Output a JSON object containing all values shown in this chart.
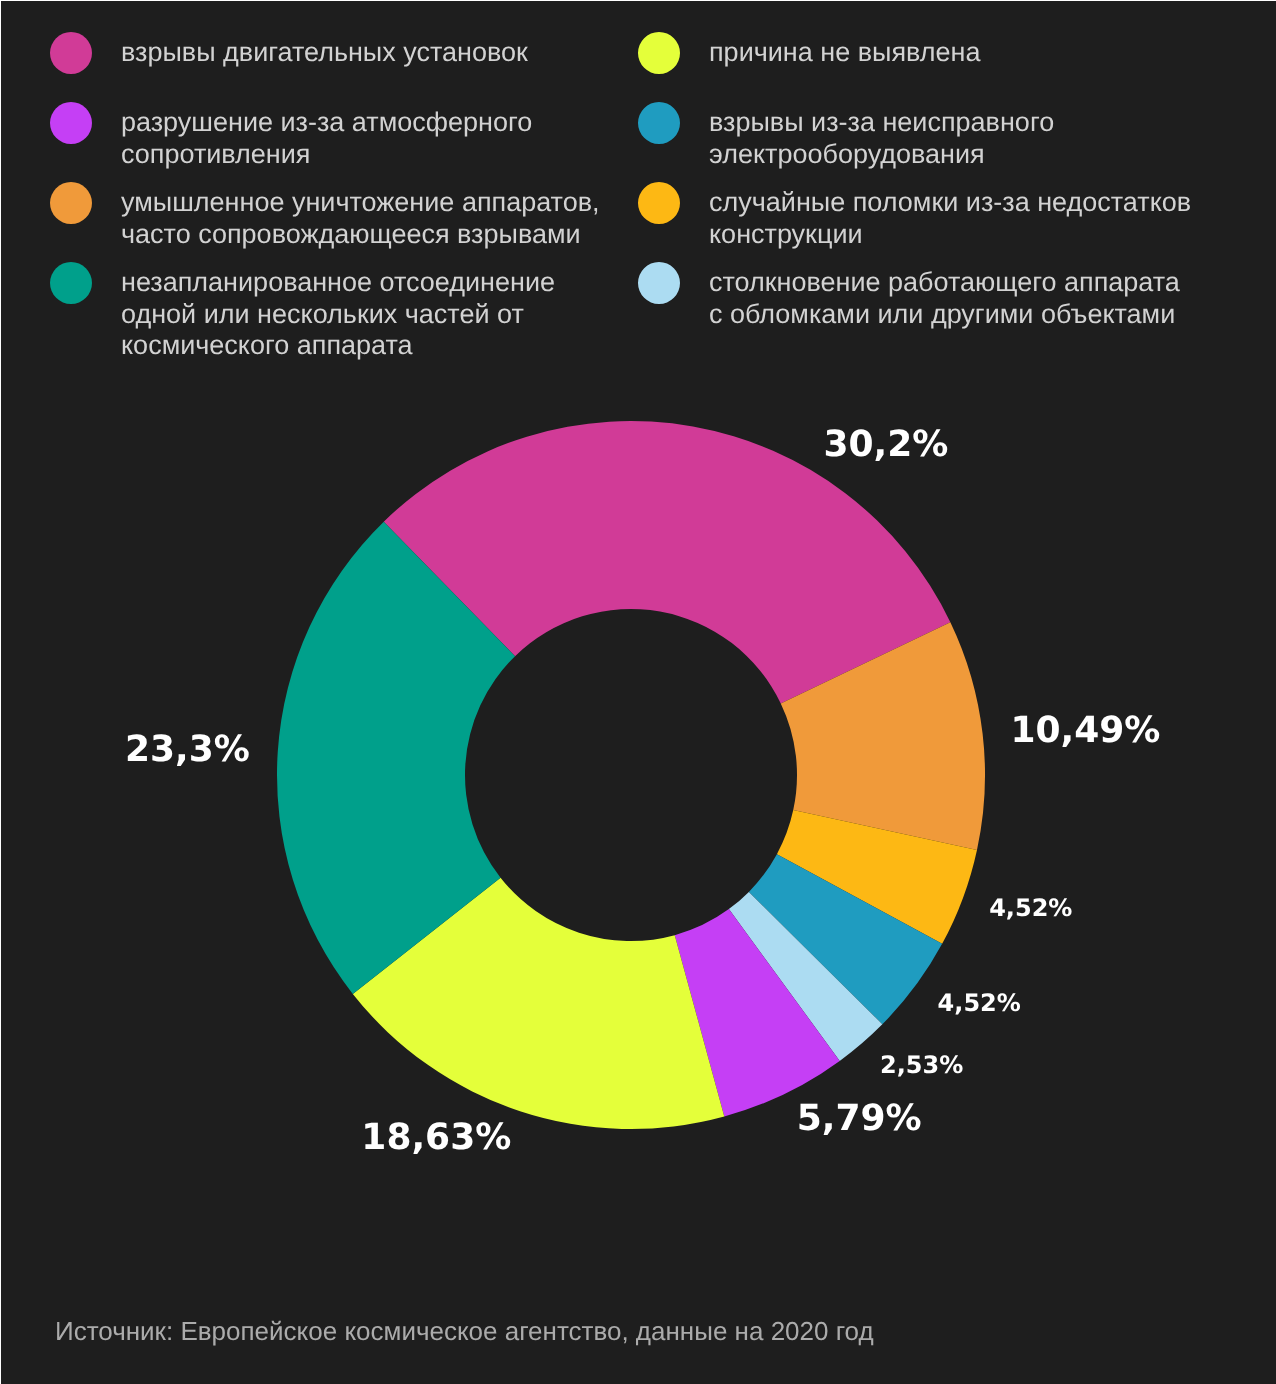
{
  "chart_data": {
    "type": "donut",
    "categories": [
      "взрывы двигательных установок",
      "умышленное уничтожение аппаратов,\nчасто сопровождающееся взрывами",
      "случайные поломки из-за недостатков\nконструкции",
      "взрывы из-за неисправного\nэлектрооборудования",
      "столкновение работающего аппарата\nс обломками или другими объектами",
      "разрушение из-за атмосферного\nсопротивления",
      "причина не выявлена",
      "незапланированное отсоединение\nодной или нескольких частей от\nкосмического аппарата"
    ],
    "values": [
      30.2,
      10.49,
      4.52,
      4.52,
      2.53,
      5.79,
      18.63,
      23.3
    ],
    "value_labels": [
      "30,2%",
      "10,49%",
      "4,52%",
      "4,52%",
      "2,53%",
      "5,79%",
      "18,63%",
      "23,3%"
    ],
    "colors": [
      "#d13b97",
      "#f09a3a",
      "#fdb814",
      "#1f9cc0",
      "#acdcf2",
      "#c53ff5",
      "#e4ff3a",
      "#00a08b"
    ],
    "legend": "top",
    "annotations": [
      "Источник: Европейское космическое агентство, данные на 2020 год"
    ]
  }
}
